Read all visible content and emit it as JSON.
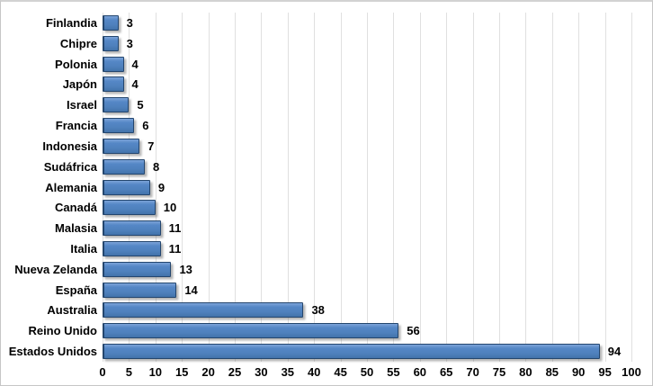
{
  "chart_data": {
    "type": "bar",
    "orientation": "horizontal",
    "title": "",
    "xlabel": "",
    "ylabel": "",
    "categories": [
      "Finlandia",
      "Chipre",
      "Polonia",
      "Japón",
      "Israel",
      "Francia",
      "Indonesia",
      "Sudáfrica",
      "Alemania",
      "Canadá",
      "Malasia",
      "Italia",
      "Nueva Zelanda",
      "España",
      "Australia",
      "Reino Unido",
      "Estados Unidos"
    ],
    "values": [
      3,
      3,
      4,
      4,
      5,
      6,
      7,
      8,
      9,
      10,
      11,
      11,
      13,
      14,
      38,
      56,
      94
    ],
    "data_labels": [
      3,
      3,
      4,
      4,
      5,
      6,
      7,
      8,
      9,
      10,
      11,
      11,
      13,
      14,
      38,
      56,
      94
    ],
    "xlim": [
      0,
      100
    ],
    "x_ticks": [
      0,
      5,
      10,
      15,
      20,
      25,
      30,
      35,
      40,
      45,
      50,
      55,
      60,
      65,
      70,
      75,
      80,
      85,
      90,
      95,
      100
    ],
    "grid": true,
    "legend": false,
    "colors": {
      "bar_fill": "#4f81bd",
      "bar_gradient_top": "#7ca3d8",
      "bar_gradient_mid": "#5587c6",
      "bar_gradient_bottom": "#4273aa",
      "bar_border": "#24466e",
      "gridline": "#e0e0e0",
      "text": "#000000",
      "background": "#ffffff",
      "frame_border": "#c6c6c6"
    }
  }
}
